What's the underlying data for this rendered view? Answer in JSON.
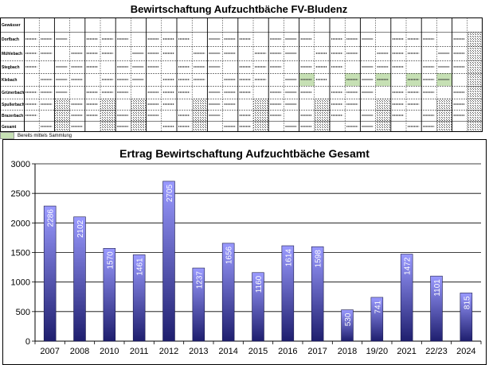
{
  "sheet": {
    "title": "Bewirtschaftung Aufzuchtbäche FV-Bludenz",
    "legend_note": "Bereits mittels Sammlung",
    "row_names": [
      "Gewässer",
      "Dorfbach",
      "Mühlebach",
      "Stegbach",
      "Klebach",
      "Grünerbach",
      "Spullerbach",
      "Brazerbach",
      "Gesamt"
    ],
    "highlight_color": "#c6e0b4",
    "hatch_color": "#555555"
  },
  "chart_data": {
    "type": "bar",
    "title": "Ertrag Bewirtschaftung Aufzuchtbäche Gesamt",
    "categories": [
      "2007",
      "2008",
      "2010",
      "2011",
      "2012",
      "2013",
      "2014",
      "2015",
      "2016",
      "2017",
      "2018",
      "19/20",
      "2021",
      "22/23",
      "2024"
    ],
    "values": [
      2286,
      2102,
      1570,
      1461,
      2705,
      1237,
      1656,
      1160,
      1614,
      1598,
      530,
      741,
      1472,
      1101,
      815
    ],
    "ylim": [
      0,
      3000
    ],
    "yticks": [
      0,
      500,
      1000,
      1500,
      2000,
      2500,
      3000
    ],
    "grid": true,
    "legend": "none",
    "bar_color_top": "#9a9aff",
    "bar_color_bottom": "#1e1e6e",
    "grid_color": "#000000"
  }
}
